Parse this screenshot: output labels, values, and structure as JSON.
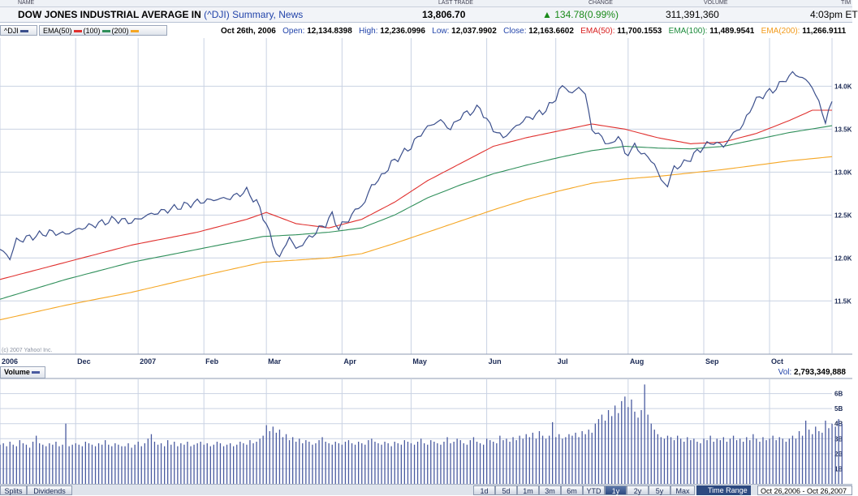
{
  "quote_header": {
    "cols": {
      "name": "NAME",
      "last_trade": "LAST TRADE",
      "change": "CHANGE",
      "volume": "VOLUME",
      "time": "TIM"
    },
    "name": "DOW JONES INDUSTRIAL AVERAGE IN",
    "symbol": "(^DJI)",
    "links": "Summary, News",
    "last_trade": "13,806.70",
    "change": "134.78(0.99%)",
    "volume": "311,391,360",
    "time": "4:03pm ET"
  },
  "info_bar": {
    "symbol_tag": "^DJI",
    "ema_tag": {
      "prefix": "EMA(50)",
      "mid": "(100)",
      "last": "(200)"
    },
    "date": "Oct 26th, 2006",
    "open_label": "Open:",
    "open": "12,134.8398",
    "high_label": "High:",
    "high": "12,236.0996",
    "low_label": "Low:",
    "low": "12,037.9902",
    "close_label": "Close:",
    "close": "12,163.6602",
    "ema50_label": "EMA(50):",
    "ema50": "11,700.1553",
    "ema100_label": "EMA(100):",
    "ema100": "11,489.9541",
    "ema200_label": "EMA(200):",
    "ema200": "11,266.9111"
  },
  "volume_panel": {
    "tag": "Volume",
    "readout_label": "Vol:",
    "readout": "2,793,349,888"
  },
  "copyright": "(c) 2007 Yahoo! Inc.",
  "bottom_bar": {
    "left_buttons": [
      "Splits",
      "Dividends"
    ],
    "range_buttons": [
      "1d",
      "5d",
      "1m",
      "3m",
      "6m",
      "YTD",
      "1y",
      "2y",
      "5y",
      "Max"
    ],
    "active_range": "1y",
    "range_label": "Time Range",
    "range_value": "Oct 26,2006 - Oct 26,2007"
  },
  "colors": {
    "price": "#3b4f8c",
    "ema50": "#e0302e",
    "ema100": "#2f8f5a",
    "ema200": "#f5a623",
    "volume": "#4a5ba0",
    "grid": "#c9d2e3"
  },
  "chart_data": [
    {
      "type": "line",
      "title": "DOW JONES INDUSTRIAL AVERAGE IN (^DJI)",
      "x_tick_labels": [
        "2006",
        "Dec",
        "2007",
        "Feb",
        "Mar",
        "Apr",
        "May",
        "Jun",
        "Jul",
        "Aug",
        "Sep",
        "Oct"
      ],
      "x_tick_index": [
        0,
        23,
        42,
        62,
        81,
        104,
        125,
        148,
        169,
        191,
        214,
        234
      ],
      "y_ticks": [
        11500,
        12000,
        12500,
        13000,
        13500,
        14000
      ],
      "y_tick_labels": [
        "11.5K",
        "12.0K",
        "12.5K",
        "13.0K",
        "13.5K",
        "14.0K"
      ],
      "ylim": [
        10880,
        14560
      ],
      "x_count": 254,
      "grid": true,
      "series": [
        {
          "name": "^DJI",
          "key": "price",
          "anchors": [
            [
              0,
              12100
            ],
            [
              3,
              12000
            ],
            [
              5,
              12200
            ],
            [
              10,
              12250
            ],
            [
              15,
              12300
            ],
            [
              20,
              12280
            ],
            [
              25,
              12350
            ],
            [
              30,
              12400
            ],
            [
              35,
              12450
            ],
            [
              40,
              12420
            ],
            [
              45,
              12500
            ],
            [
              50,
              12550
            ],
            [
              55,
              12600
            ],
            [
              60,
              12650
            ],
            [
              65,
              12680
            ],
            [
              70,
              12700
            ],
            [
              75,
              12780
            ],
            [
              78,
              12650
            ],
            [
              81,
              12400
            ],
            [
              83,
              12150
            ],
            [
              85,
              12000
            ],
            [
              88,
              12250
            ],
            [
              90,
              12100
            ],
            [
              93,
              12200
            ],
            [
              96,
              12300
            ],
            [
              99,
              12400
            ],
            [
              101,
              12500
            ],
            [
              103,
              12350
            ],
            [
              106,
              12450
            ],
            [
              108,
              12550
            ],
            [
              111,
              12650
            ],
            [
              113,
              12850
            ],
            [
              115,
              12900
            ],
            [
              117,
              13000
            ],
            [
              119,
              13100
            ],
            [
              122,
              13200
            ],
            [
              125,
              13300
            ],
            [
              128,
              13450
            ],
            [
              131,
              13550
            ],
            [
              134,
              13600
            ],
            [
              137,
              13500
            ],
            [
              140,
              13650
            ],
            [
              143,
              13700
            ],
            [
              146,
              13750
            ],
            [
              148,
              13600
            ],
            [
              150,
              13500
            ],
            [
              153,
              13400
            ],
            [
              156,
              13500
            ],
            [
              159,
              13600
            ],
            [
              162,
              13650
            ],
            [
              165,
              13700
            ],
            [
              168,
              13800
            ],
            [
              170,
              13950
            ],
            [
              172,
              14000
            ],
            [
              174,
              13900
            ],
            [
              176,
              14000
            ],
            [
              178,
              13900
            ],
            [
              180,
              13500
            ],
            [
              183,
              13400
            ],
            [
              186,
              13300
            ],
            [
              188,
              13450
            ],
            [
              190,
              13200
            ],
            [
              193,
              13300
            ],
            [
              196,
              13200
            ],
            [
              199,
              13100
            ],
            [
              201,
              12900
            ],
            [
              203,
              12850
            ],
            [
              205,
              13050
            ],
            [
              208,
              13100
            ],
            [
              211,
              13200
            ],
            [
              214,
              13300
            ],
            [
              217,
              13350
            ],
            [
              220,
              13300
            ],
            [
              223,
              13450
            ],
            [
              226,
              13550
            ],
            [
              229,
              13800
            ],
            [
              232,
              13900
            ],
            [
              235,
              13950
            ],
            [
              238,
              14050
            ],
            [
              241,
              14150
            ],
            [
              244,
              14100
            ],
            [
              247,
              14000
            ],
            [
              249,
              13800
            ],
            [
              251,
              13600
            ],
            [
              253,
              13800
            ]
          ],
          "values_note_label": ""
        },
        {
          "name": "EMA(50)",
          "key": "ema50",
          "anchors": [
            [
              0,
              11750
            ],
            [
              20,
              11950
            ],
            [
              40,
              12150
            ],
            [
              60,
              12300
            ],
            [
              75,
              12450
            ],
            [
              81,
              12530
            ],
            [
              90,
              12400
            ],
            [
              100,
              12350
            ],
            [
              110,
              12450
            ],
            [
              120,
              12650
            ],
            [
              130,
              12900
            ],
            [
              140,
              13100
            ],
            [
              150,
              13300
            ],
            [
              160,
              13400
            ],
            [
              170,
              13480
            ],
            [
              180,
              13560
            ],
            [
              190,
              13500
            ],
            [
              200,
              13400
            ],
            [
              210,
              13330
            ],
            [
              220,
              13350
            ],
            [
              230,
              13450
            ],
            [
              240,
              13600
            ],
            [
              247,
              13720
            ],
            [
              253,
              13720
            ]
          ]
        },
        {
          "name": "EMA(100)",
          "key": "ema100",
          "anchors": [
            [
              0,
              11520
            ],
            [
              20,
              11750
            ],
            [
              40,
              11950
            ],
            [
              60,
              12100
            ],
            [
              80,
              12250
            ],
            [
              90,
              12270
            ],
            [
              100,
              12300
            ],
            [
              110,
              12350
            ],
            [
              120,
              12500
            ],
            [
              130,
              12700
            ],
            [
              140,
              12850
            ],
            [
              150,
              12980
            ],
            [
              160,
              13080
            ],
            [
              170,
              13170
            ],
            [
              180,
              13250
            ],
            [
              190,
              13300
            ],
            [
              200,
              13280
            ],
            [
              210,
              13270
            ],
            [
              220,
              13300
            ],
            [
              230,
              13380
            ],
            [
              240,
              13460
            ],
            [
              253,
              13540
            ]
          ]
        },
        {
          "name": "EMA(200)",
          "key": "ema200",
          "anchors": [
            [
              0,
              11280
            ],
            [
              20,
              11450
            ],
            [
              40,
              11600
            ],
            [
              60,
              11780
            ],
            [
              80,
              11950
            ],
            [
              100,
              12000
            ],
            [
              110,
              12050
            ],
            [
              120,
              12170
            ],
            [
              130,
              12300
            ],
            [
              140,
              12430
            ],
            [
              150,
              12560
            ],
            [
              160,
              12680
            ],
            [
              170,
              12780
            ],
            [
              180,
              12870
            ],
            [
              190,
              12920
            ],
            [
              200,
              12950
            ],
            [
              210,
              12990
            ],
            [
              220,
              13030
            ],
            [
              230,
              13080
            ],
            [
              240,
              13130
            ],
            [
              253,
              13180
            ]
          ]
        }
      ]
    },
    {
      "type": "bar",
      "title": "Volume",
      "y_ticks": [
        1,
        2,
        3,
        4,
        5,
        6
      ],
      "y_tick_labels": [
        "1B",
        "2B",
        "3B",
        "4B",
        "5B",
        "6B"
      ],
      "ylim": [
        0,
        7
      ],
      "unit": "billion shares",
      "values": [
        2.6,
        2.7,
        2.5,
        2.8,
        2.6,
        2.5,
        2.9,
        2.7,
        2.6,
        2.4,
        2.8,
        3.2,
        2.7,
        2.6,
        2.5,
        2.7,
        2.6,
        2.8,
        2.5,
        2.6,
        4.0,
        2.5,
        2.6,
        2.7,
        2.6,
        2.5,
        2.8,
        2.7,
        2.6,
        2.5,
        2.7,
        2.6,
        2.9,
        2.6,
        2.5,
        2.7,
        2.6,
        2.5,
        2.5,
        2.7,
        2.4,
        2.6,
        2.8,
        2.5,
        2.7,
        3.0,
        3.3,
        2.8,
        2.6,
        2.7,
        2.5,
        2.9,
        2.6,
        2.8,
        2.5,
        2.7,
        2.6,
        2.8,
        2.5,
        2.6,
        2.7,
        2.8,
        2.6,
        2.7,
        2.5,
        2.6,
        2.8,
        2.7,
        2.5,
        2.6,
        2.7,
        2.5,
        2.6,
        2.8,
        2.7,
        2.6,
        2.9,
        2.7,
        2.8,
        3.0,
        3.2,
        3.9,
        3.5,
        3.8,
        3.4,
        3.6,
        3.1,
        3.3,
        2.9,
        3.1,
        2.8,
        3.0,
        2.7,
        2.9,
        2.8,
        2.6,
        2.7,
        2.9,
        3.1,
        2.8,
        2.7,
        2.6,
        2.8,
        2.7,
        2.6,
        2.8,
        2.9,
        2.7,
        2.6,
        2.8,
        2.7,
        2.6,
        2.9,
        3.0,
        2.8,
        2.7,
        2.6,
        2.8,
        2.7,
        2.5,
        2.8,
        2.7,
        2.6,
        2.9,
        2.8,
        2.7,
        2.6,
        2.8,
        3.0,
        2.7,
        2.6,
        2.9,
        2.8,
        2.7,
        2.6,
        2.8,
        3.1,
        2.7,
        2.8,
        3.0,
        2.9,
        2.7,
        2.6,
        2.9,
        3.1,
        2.8,
        2.7,
        2.6,
        3.0,
        2.9,
        2.8,
        2.7,
        3.2,
        2.9,
        3.0,
        2.8,
        3.1,
        2.9,
        3.2,
        3.0,
        3.3,
        3.1,
        3.4,
        3.0,
        3.5,
        3.2,
        3.0,
        3.2,
        4.1,
        3.1,
        3.3,
        3.0,
        3.1,
        3.3,
        3.2,
        3.4,
        3.1,
        3.5,
        3.3,
        3.6,
        3.4,
        4.0,
        4.3,
        4.6,
        4.2,
        4.9,
        4.5,
        5.2,
        4.7,
        5.5,
        5.8,
        5.1,
        5.6,
        4.8,
        4.4,
        4.9,
        6.6,
        4.6,
        4.0,
        3.6,
        3.3,
        3.1,
        3.0,
        3.2,
        3.1,
        2.9,
        3.2,
        3.0,
        2.8,
        3.1,
        2.9,
        3.0,
        2.8,
        2.7,
        3.0,
        2.9,
        3.2,
        2.8,
        3.0,
        2.9,
        3.1,
        2.8,
        3.0,
        3.2,
        2.9,
        3.0,
        2.8,
        3.1,
        2.9,
        3.3,
        3.0,
        2.8,
        3.1,
        2.9,
        3.0,
        3.2,
        2.9,
        3.1,
        3.0,
        2.8,
        3.0,
        3.2,
        3.0,
        3.5,
        3.2,
        4.2,
        3.6,
        3.3,
        3.8,
        3.5,
        3.4,
        4.2,
        3.7,
        4.0,
        3.8,
        4.3,
        4.0
      ]
    }
  ]
}
